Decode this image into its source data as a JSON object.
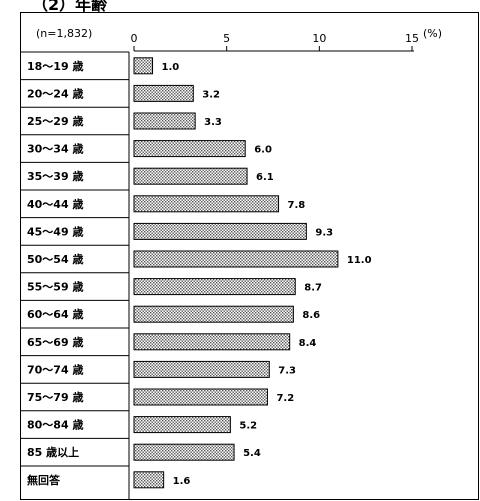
{
  "heading": "（2）年齢",
  "chart_data": {
    "type": "bar",
    "orientation": "horizontal",
    "annotation": "(n=1,832)",
    "unit_label": "(%)",
    "xlim": [
      0,
      15
    ],
    "xticks": [
      0,
      5,
      10,
      15
    ],
    "xtick_labels": [
      "0",
      "5",
      "10",
      "15"
    ],
    "categories": [
      "18〜19 歳",
      "20〜24 歳",
      "25〜29 歳",
      "30〜34 歳",
      "35〜39 歳",
      "40〜44 歳",
      "45〜49 歳",
      "50〜54 歳",
      "55〜59 歳",
      "60〜64 歳",
      "65〜69 歳",
      "70〜74 歳",
      "75〜79 歳",
      "80〜84 歳",
      "85 歳以上",
      "無回答"
    ],
    "values": [
      1.0,
      3.2,
      3.3,
      6.0,
      6.1,
      7.8,
      9.3,
      11.0,
      8.7,
      8.6,
      8.4,
      7.3,
      7.2,
      5.2,
      5.4,
      1.6
    ],
    "value_labels": [
      "1.0",
      "3.2",
      "3.3",
      "6.0",
      "6.1",
      "7.8",
      "9.3",
      "11.0",
      "8.7",
      "8.6",
      "8.4",
      "7.3",
      "7.2",
      "5.2",
      "5.4",
      "1.6"
    ],
    "bar_fill": "#d9d9d9",
    "bar_stroke": "#000000"
  }
}
